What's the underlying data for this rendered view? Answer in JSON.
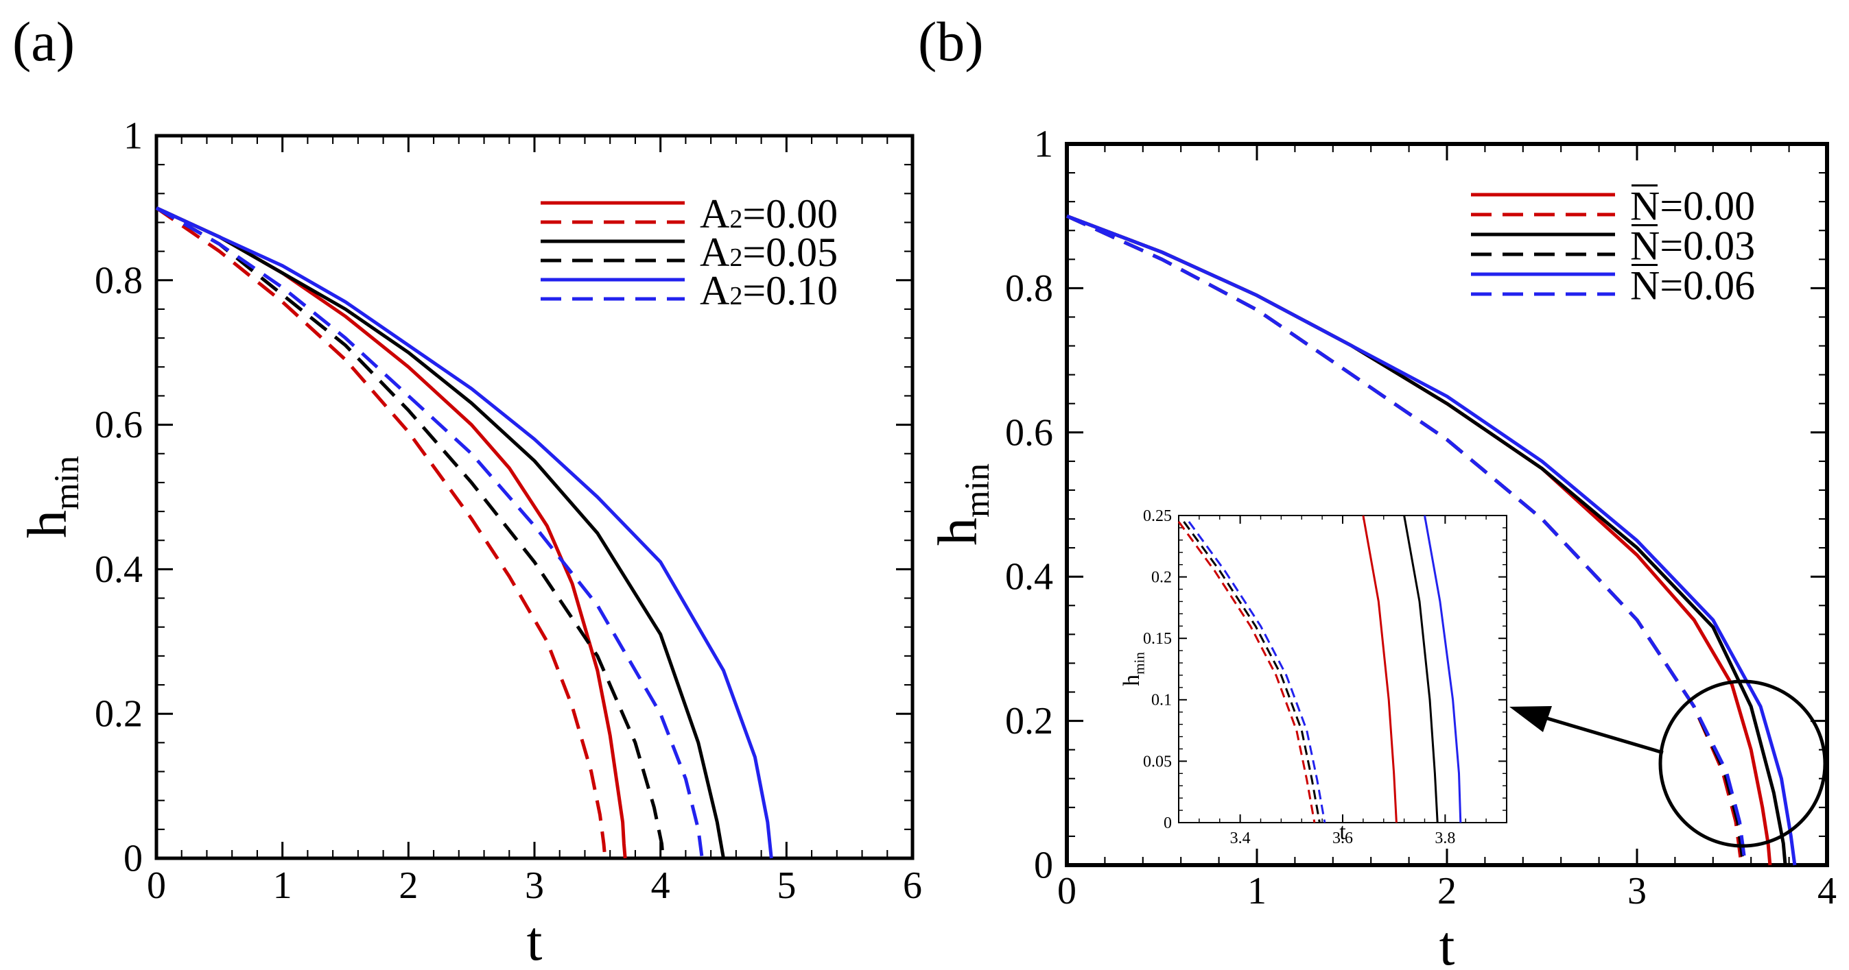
{
  "colors": {
    "red": "#cc0000",
    "black": "#000000",
    "blue": "#2222ee"
  },
  "chart_data": [
    {
      "panel_label": "(a)",
      "type": "line",
      "xlabel": "t",
      "ylabel_main": "h",
      "ylabel_sub": "min",
      "xlim": [
        0,
        6
      ],
      "ylim": [
        0,
        1
      ],
      "xticks": [
        "0",
        "1",
        "2",
        "3",
        "4",
        "5",
        "6"
      ],
      "yticks": [
        "0",
        "0.2",
        "0.4",
        "0.6",
        "0.8",
        "1"
      ],
      "legend_position": "top-right",
      "legend": [
        {
          "name": "A",
          "sub": "2",
          "value": "=0.00",
          "color": "red"
        },
        {
          "name": "A",
          "sub": "2",
          "value": "=0.05",
          "color": "black"
        },
        {
          "name": "A",
          "sub": "2",
          "value": "=0.10",
          "color": "blue"
        }
      ],
      "series": [
        {
          "name": "A2=0.00 solid",
          "color": "red",
          "style": "solid",
          "x": [
            0,
            0.5,
            1,
            1.5,
            2,
            2.5,
            2.8,
            3.1,
            3.3,
            3.5,
            3.6,
            3.65,
            3.7,
            3.71,
            3.72
          ],
          "y": [
            0.9,
            0.86,
            0.81,
            0.75,
            0.68,
            0.6,
            0.54,
            0.46,
            0.38,
            0.26,
            0.17,
            0.11,
            0.05,
            0.02,
            0
          ]
        },
        {
          "name": "A2=0.00 dashed",
          "color": "red",
          "style": "dashed",
          "x": [
            0,
            0.5,
            1,
            1.5,
            2,
            2.5,
            2.8,
            3.1,
            3.3,
            3.45,
            3.52,
            3.55,
            3.56
          ],
          "y": [
            0.9,
            0.84,
            0.77,
            0.69,
            0.59,
            0.47,
            0.39,
            0.3,
            0.21,
            0.12,
            0.06,
            0.02,
            0
          ]
        },
        {
          "name": "A2=0.05 solid",
          "color": "black",
          "style": "solid",
          "x": [
            0,
            0.5,
            1,
            1.5,
            2,
            2.5,
            3,
            3.5,
            4,
            4.3,
            4.45,
            4.5
          ],
          "y": [
            0.9,
            0.86,
            0.81,
            0.76,
            0.7,
            0.63,
            0.55,
            0.45,
            0.31,
            0.16,
            0.05,
            0
          ]
        },
        {
          "name": "A2=0.05 dashed",
          "color": "black",
          "style": "dashed",
          "x": [
            0,
            0.5,
            1,
            1.5,
            2,
            2.5,
            3,
            3.5,
            3.8,
            3.95,
            4.01,
            4.02
          ],
          "y": [
            0.9,
            0.85,
            0.78,
            0.71,
            0.62,
            0.52,
            0.41,
            0.28,
            0.16,
            0.07,
            0.02,
            0
          ]
        },
        {
          "name": "A2=0.10 solid",
          "color": "blue",
          "style": "solid",
          "x": [
            0,
            0.5,
            1,
            1.5,
            2,
            2.5,
            3,
            3.5,
            4,
            4.5,
            4.75,
            4.85,
            4.88
          ],
          "y": [
            0.9,
            0.86,
            0.82,
            0.77,
            0.71,
            0.65,
            0.58,
            0.5,
            0.41,
            0.26,
            0.14,
            0.05,
            0
          ]
        },
        {
          "name": "A2=0.10 dashed",
          "color": "blue",
          "style": "dashed",
          "x": [
            0,
            0.5,
            1,
            1.5,
            2,
            2.5,
            3,
            3.5,
            4,
            4.2,
            4.3,
            4.33
          ],
          "y": [
            0.9,
            0.85,
            0.79,
            0.72,
            0.64,
            0.56,
            0.46,
            0.35,
            0.2,
            0.11,
            0.04,
            0
          ]
        }
      ]
    },
    {
      "panel_label": "(b)",
      "type": "line",
      "xlabel": "t",
      "ylabel_main": "h",
      "ylabel_sub": "min",
      "xlim": [
        0,
        4
      ],
      "ylim": [
        0,
        1
      ],
      "xticks": [
        "0",
        "1",
        "2",
        "3",
        "4"
      ],
      "yticks": [
        "0",
        "0.2",
        "0.4",
        "0.6",
        "0.8",
        "1"
      ],
      "legend_position": "top-right",
      "legend": [
        {
          "name": "N",
          "value": "=0.00",
          "color": "red"
        },
        {
          "name": "N",
          "value": "=0.03",
          "color": "black"
        },
        {
          "name": "N",
          "value": "=0.06",
          "color": "blue"
        }
      ],
      "series": [
        {
          "name": "N=0.00 solid",
          "color": "red",
          "style": "solid",
          "x": [
            0,
            0.5,
            1,
            1.5,
            2,
            2.5,
            3,
            3.3,
            3.5,
            3.6,
            3.66,
            3.69,
            3.7
          ],
          "y": [
            0.9,
            0.85,
            0.79,
            0.72,
            0.64,
            0.55,
            0.43,
            0.34,
            0.25,
            0.16,
            0.08,
            0.03,
            0
          ]
        },
        {
          "name": "N=0.00 dashed",
          "color": "red",
          "style": "dashed",
          "x": [
            0,
            0.5,
            1,
            1.5,
            2,
            2.5,
            3,
            3.3,
            3.45,
            3.52,
            3.55
          ],
          "y": [
            0.9,
            0.84,
            0.77,
            0.68,
            0.59,
            0.48,
            0.34,
            0.22,
            0.13,
            0.06,
            0
          ]
        },
        {
          "name": "N=0.03 solid",
          "color": "black",
          "style": "solid",
          "x": [
            0,
            0.5,
            1,
            1.5,
            2,
            2.5,
            3,
            3.4,
            3.6,
            3.72,
            3.77,
            3.78
          ],
          "y": [
            0.9,
            0.85,
            0.79,
            0.72,
            0.64,
            0.55,
            0.44,
            0.33,
            0.22,
            0.1,
            0.03,
            0
          ]
        },
        {
          "name": "N=0.03 dashed",
          "color": "black",
          "style": "dashed",
          "x": [
            0,
            0.5,
            1,
            1.5,
            2,
            2.5,
            3,
            3.3,
            3.46,
            3.53,
            3.56
          ],
          "y": [
            0.9,
            0.84,
            0.77,
            0.68,
            0.59,
            0.48,
            0.34,
            0.22,
            0.13,
            0.06,
            0
          ]
        },
        {
          "name": "N=0.06 solid",
          "color": "blue",
          "style": "solid",
          "x": [
            0,
            0.5,
            1,
            1.5,
            2,
            2.5,
            3,
            3.4,
            3.65,
            3.76,
            3.81,
            3.83
          ],
          "y": [
            0.9,
            0.85,
            0.79,
            0.72,
            0.65,
            0.56,
            0.45,
            0.34,
            0.22,
            0.12,
            0.04,
            0
          ]
        },
        {
          "name": "N=0.06 dashed",
          "color": "blue",
          "style": "dashed",
          "x": [
            0,
            0.5,
            1,
            1.5,
            2,
            2.5,
            3,
            3.3,
            3.47,
            3.54,
            3.57
          ],
          "y": [
            0.9,
            0.84,
            0.77,
            0.68,
            0.59,
            0.48,
            0.34,
            0.22,
            0.13,
            0.06,
            0
          ]
        }
      ],
      "inset": {
        "xlabel": "t",
        "ylabel_main": "h",
        "ylabel_sub": "min",
        "xlim": [
          3.28,
          3.92
        ],
        "ylim": [
          0,
          0.25
        ],
        "xticks": [
          "3.4",
          "3.6",
          "3.8"
        ],
        "yticks": [
          "0",
          "0.05",
          "0.1",
          "0.15",
          "0.2",
          "0.25"
        ],
        "series": [
          {
            "color": "red",
            "style": "solid",
            "x": [
              3.64,
              3.67,
              3.69,
              3.7,
              3.705
            ],
            "y": [
              0.25,
              0.18,
              0.1,
              0.04,
              0
            ]
          },
          {
            "color": "black",
            "style": "solid",
            "x": [
              3.72,
              3.75,
              3.77,
              3.78,
              3.785
            ],
            "y": [
              0.25,
              0.18,
              0.1,
              0.04,
              0
            ]
          },
          {
            "color": "blue",
            "style": "solid",
            "x": [
              3.76,
              3.79,
              3.815,
              3.827,
              3.83
            ],
            "y": [
              0.25,
              0.18,
              0.1,
              0.04,
              0
            ]
          },
          {
            "color": "red",
            "style": "dashed",
            "x": [
              3.28,
              3.35,
              3.42,
              3.47,
              3.51,
              3.53,
              3.545
            ],
            "y": [
              0.245,
              0.205,
              0.16,
              0.12,
              0.075,
              0.035,
              0
            ]
          },
          {
            "color": "black",
            "style": "dashed",
            "x": [
              3.29,
              3.36,
              3.43,
              3.48,
              3.52,
              3.54,
              3.555
            ],
            "y": [
              0.245,
              0.205,
              0.16,
              0.12,
              0.075,
              0.035,
              0
            ]
          },
          {
            "color": "blue",
            "style": "dashed",
            "x": [
              3.3,
              3.37,
              3.44,
              3.49,
              3.53,
              3.55,
              3.565
            ],
            "y": [
              0.245,
              0.205,
              0.16,
              0.12,
              0.075,
              0.035,
              0
            ]
          }
        ]
      }
    }
  ]
}
